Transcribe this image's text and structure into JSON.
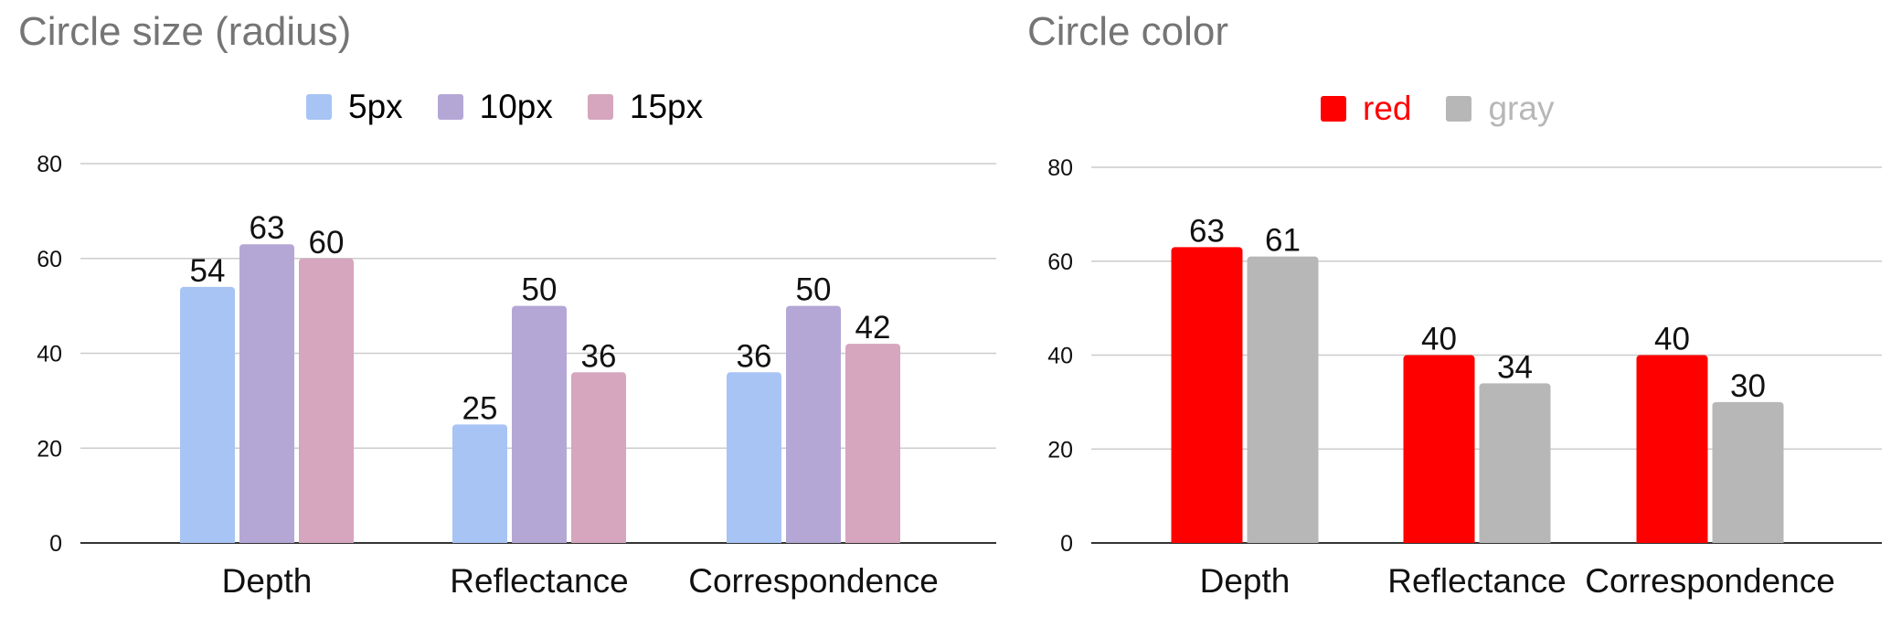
{
  "chart_data": [
    {
      "type": "bar",
      "title": "Circle size (radius)",
      "categories": [
        "Depth",
        "Reflectance",
        "Correspondence"
      ],
      "series": [
        {
          "name": "5px",
          "color": "#a7c4f4",
          "values": [
            54,
            25,
            36
          ]
        },
        {
          "name": "10px",
          "color": "#b4a7d6",
          "values": [
            63,
            50,
            50
          ]
        },
        {
          "name": "15px",
          "color": "#d5a6bd",
          "values": [
            60,
            36,
            42
          ]
        }
      ],
      "xlabel": "",
      "ylabel": "",
      "ylim": [
        0,
        80
      ],
      "yticks": [
        "0",
        "20",
        "40",
        "60",
        "80"
      ],
      "grid": true,
      "legend": "top",
      "data_labels": true,
      "legend_text_color": "#000000"
    },
    {
      "type": "bar",
      "title": "Circle color",
      "categories": [
        "Depth",
        "Reflectance",
        "Correspondence"
      ],
      "series": [
        {
          "name": "red",
          "color": "#ff0000",
          "label_color": "#ff0000",
          "values": [
            63,
            40,
            40
          ]
        },
        {
          "name": "gray",
          "color": "#b7b7b7",
          "label_color": "#b7b7b7",
          "values": [
            61,
            34,
            30
          ]
        }
      ],
      "xlabel": "",
      "ylabel": "",
      "ylim": [
        0,
        80
      ],
      "yticks": [
        "0",
        "20",
        "40",
        "60",
        "80"
      ],
      "grid": true,
      "legend": "top",
      "data_labels": true
    }
  ]
}
